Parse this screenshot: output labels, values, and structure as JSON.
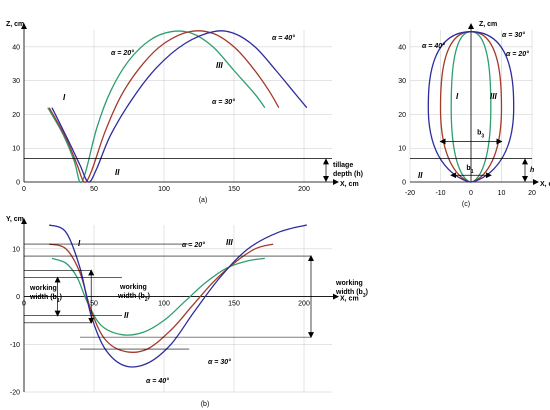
{
  "chart_data": [
    {
      "type": "line",
      "panel": "(a)",
      "ylabel": "Z, cm",
      "xlabel": "X, cm",
      "xlim": [
        0,
        220
      ],
      "ylim": [
        0,
        45
      ],
      "xticks": [
        "0",
        "50",
        "100",
        "150",
        "200"
      ],
      "yticks": [
        "0",
        "10",
        "20",
        "30",
        "40"
      ],
      "grid": true,
      "series": [
        {
          "name": "α = 20°",
          "color": "#2e9e6e",
          "x": [
            17,
            28,
            36,
            40,
            44,
            52,
            62,
            75,
            90,
            105,
            120,
            135,
            150,
            165,
            172
          ],
          "y": [
            22,
            14,
            6,
            0,
            3,
            16,
            27,
            36,
            42,
            44.5,
            44,
            40,
            33,
            26,
            22
          ]
        },
        {
          "name": "α = 30°",
          "color": "#a33a2a",
          "x": [
            18,
            30,
            38,
            43,
            48,
            58,
            70,
            85,
            100,
            118,
            135,
            150,
            163,
            175,
            182
          ],
          "y": [
            22,
            13,
            5,
            0,
            3,
            15,
            26,
            35,
            41,
            44.5,
            44,
            40,
            34,
            27,
            22
          ]
        },
        {
          "name": "α = 40°",
          "color": "#2c2ca0",
          "x": [
            20,
            32,
            40,
            46,
            52,
            62,
            78,
            95,
            115,
            135,
            150,
            165,
            180,
            192,
            202
          ],
          "y": [
            22,
            12,
            5,
            0,
            4,
            14,
            25,
            34,
            41,
            44.5,
            44,
            40,
            33,
            27,
            22
          ]
        }
      ],
      "annotations": {
        "alpha20": "α = 20°",
        "alpha30": "α = 30°",
        "alpha40": "α = 40°",
        "zone1": "I",
        "zone2": "II",
        "zone3": "III",
        "depth_line1": "tillage",
        "depth_line2": "depth (h)",
        "depth_value": 7
      }
    },
    {
      "type": "line",
      "panel": "(c)",
      "ylabel": "Z, cm",
      "xlabel": "X, cm",
      "xlim": [
        -20,
        20
      ],
      "ylim": [
        0,
        45
      ],
      "xticks": [
        "-20",
        "-10",
        "0",
        "10",
        "20"
      ],
      "yticks": [
        "0",
        "10",
        "20",
        "30",
        "40"
      ],
      "grid": true,
      "series": [
        {
          "name": "α = 20°",
          "color": "#2e9e6e",
          "half_width": 6.5
        },
        {
          "name": "α = 30°",
          "color": "#a33a2a",
          "half_width": 10
        },
        {
          "name": "α = 40°",
          "color": "#2c2ca0",
          "half_width": 14
        }
      ],
      "annotations": {
        "alpha20": "α = 20°",
        "alpha30": "α = 30°",
        "alpha30b": "α = 30°",
        "alpha40": "α = 40°",
        "zone1": "I",
        "zone2": "II",
        "zone3": "III",
        "b1": "b",
        "b1sub": "1",
        "b3": "b",
        "b3sub": "3",
        "h": "h"
      }
    },
    {
      "type": "line",
      "panel": "(b)",
      "ylabel": "Y, cm",
      "xlabel": "X, cm",
      "xlim": [
        0,
        220
      ],
      "ylim": [
        -20,
        15
      ],
      "xticks": [
        "0",
        "50",
        "100",
        "150",
        "200"
      ],
      "yticks": [
        "-20",
        "-10",
        "0",
        "10"
      ],
      "grid": true,
      "series": [
        {
          "name": "α = 20°",
          "color": "#2e9e6e",
          "x": [
            20,
            30,
            38,
            45,
            55,
            70,
            85,
            100,
            115,
            130,
            145,
            160,
            172
          ],
          "y": [
            8,
            7,
            4,
            -1,
            -6,
            -8,
            -7.5,
            -5,
            -1,
            3,
            6,
            7.5,
            8
          ]
        },
        {
          "name": "α = 30°",
          "color": "#a33a2a",
          "x": [
            18,
            30,
            40,
            48,
            58,
            72,
            88,
            105,
            120,
            135,
            150,
            165,
            178
          ],
          "y": [
            11,
            10,
            5,
            -3,
            -9,
            -11.5,
            -11,
            -7,
            -2,
            3,
            7,
            10,
            11
          ]
        },
        {
          "name": "α = 40°",
          "color": "#2c2ca0",
          "x": [
            18,
            30,
            40,
            48,
            58,
            72,
            88,
            105,
            122,
            140,
            160,
            182,
            202
          ],
          "y": [
            15,
            13.5,
            6,
            -4,
            -11,
            -14.5,
            -14,
            -10,
            -3,
            4,
            10,
            13.5,
            15
          ]
        }
      ],
      "annotations": {
        "alpha20": "α = 20°",
        "alpha30": "α = 30°",
        "alpha40": "α = 40°",
        "zone1": "I",
        "zone2": "II",
        "zone3": "III",
        "w1a": "working",
        "w1b": "width (b",
        "w1sub": "1",
        "w2a": "working",
        "w2b": "width (b",
        "w2sub": "2",
        "w3a": "working",
        "w3b": "width (b",
        "w3sub": "3",
        "close": ")"
      }
    }
  ]
}
